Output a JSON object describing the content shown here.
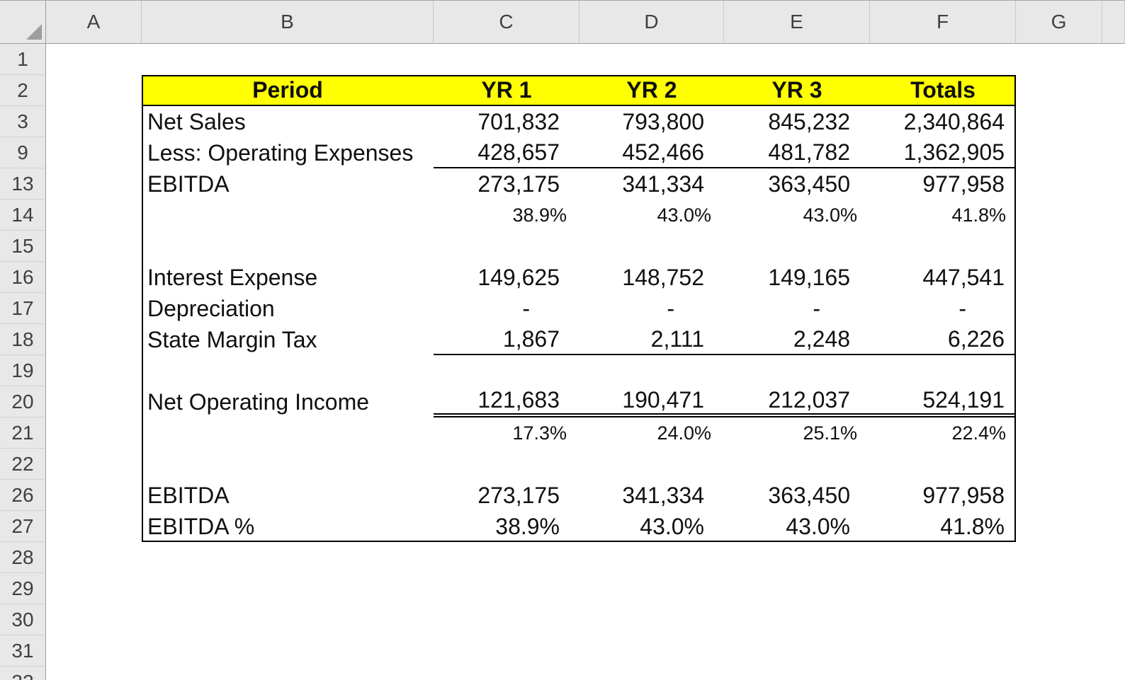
{
  "app": {
    "name": "Excel worksheet - EBITDA schedule"
  },
  "colors": {
    "highlight_fill": "#ffff00",
    "chrome_bg": "#e8e8e8",
    "table_border": "#000000"
  },
  "columns": [
    "A",
    "B",
    "C",
    "D",
    "E",
    "F",
    "G"
  ],
  "visible_row_numbers": [
    "1",
    "2",
    "3",
    "9",
    "13",
    "14",
    "15",
    "16",
    "17",
    "18",
    "19",
    "20",
    "21",
    "22",
    "26",
    "27",
    "28",
    "29",
    "30",
    "31",
    "32"
  ],
  "table": {
    "header_row": {
      "row": "2",
      "labels": {
        "B": "Period",
        "C": "YR 1",
        "D": "YR 2",
        "E": "YR 3",
        "F": "Totals"
      }
    },
    "body_rows": [
      {
        "row": "3",
        "label": "Net Sales",
        "kind": "number",
        "values": [
          "701,832",
          "793,800",
          "845,232",
          "2,340,864"
        ]
      },
      {
        "row": "9",
        "label": "Less: Operating Expenses",
        "kind": "number",
        "rule_below": "single",
        "values": [
          "428,657",
          "452,466",
          "481,782",
          "1,362,905"
        ]
      },
      {
        "row": "13",
        "label": "EBITDA",
        "kind": "number",
        "values": [
          "273,175",
          "341,334",
          "363,450",
          "977,958"
        ]
      },
      {
        "row": "14",
        "label": "",
        "kind": "percent",
        "values": [
          "38.9%",
          "43.0%",
          "43.0%",
          "41.8%"
        ]
      },
      {
        "row": "16",
        "label": "Interest Expense",
        "kind": "number",
        "values": [
          "149,625",
          "148,752",
          "149,165",
          "447,541"
        ]
      },
      {
        "row": "17",
        "label": "Depreciation",
        "kind": "dash",
        "values": [
          "-",
          "-",
          "-",
          "-"
        ]
      },
      {
        "row": "18",
        "label": "State Margin Tax",
        "kind": "number",
        "rule_below": "single",
        "values": [
          "1,867",
          "2,111",
          "2,248",
          "6,226"
        ]
      },
      {
        "row": "20",
        "label": "Net Operating Income",
        "kind": "number",
        "rule_below": "double",
        "values": [
          "121,683",
          "190,471",
          "212,037",
          "524,191"
        ]
      },
      {
        "row": "21",
        "label": "",
        "kind": "percent",
        "values": [
          "17.3%",
          "24.0%",
          "25.1%",
          "22.4%"
        ]
      },
      {
        "row": "26",
        "label": "EBITDA",
        "kind": "number",
        "values": [
          "273,175",
          "341,334",
          "363,450",
          "977,958"
        ]
      },
      {
        "row": "27",
        "label": "EBITDA %",
        "kind": "number",
        "values": [
          "38.9%",
          "43.0%",
          "43.0%",
          "41.8%"
        ]
      }
    ]
  }
}
